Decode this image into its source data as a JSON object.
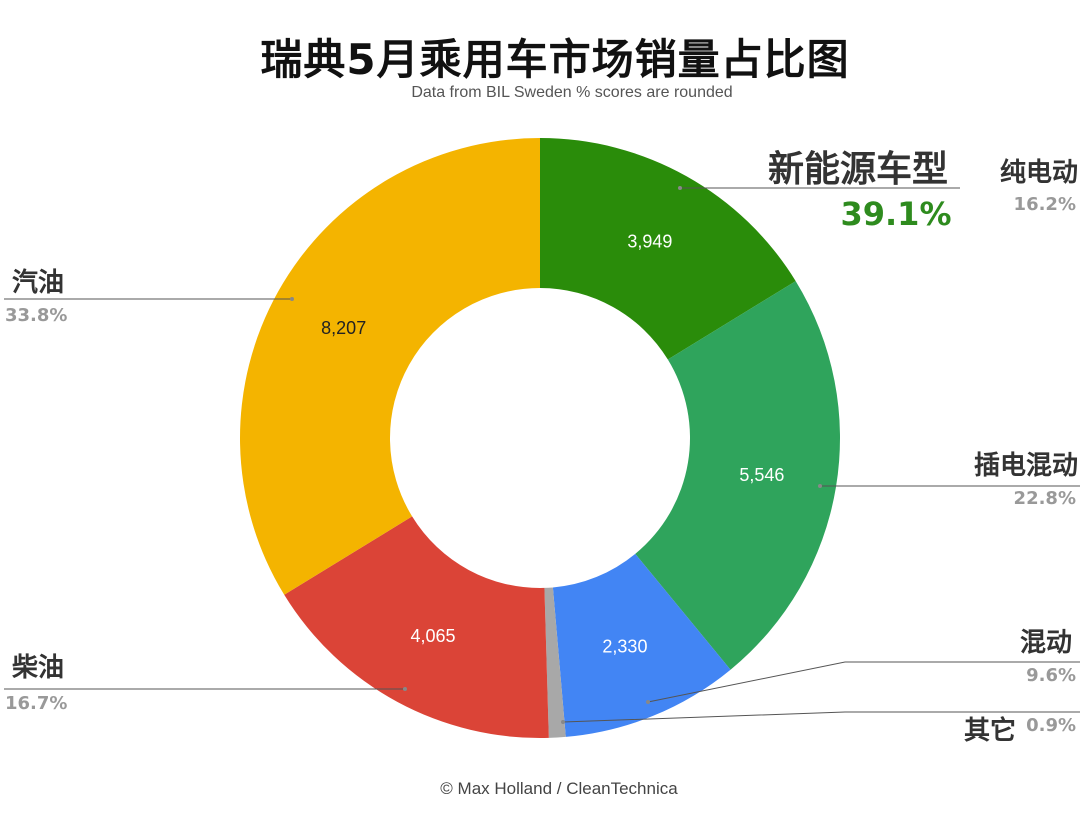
{
  "title": "瑞典5月乘用车市场销量占比图",
  "subtitle": "Data from BIL Sweden % scores are rounded",
  "credit": "© Max Holland / CleanTechnica",
  "chart_data": {
    "type": "pie",
    "donut": true,
    "slices": [
      {
        "key": "bev",
        "label": "纯电动",
        "value": 3949,
        "value_label": "3,949",
        "percent": "16.2%",
        "color": "#2a8c0a",
        "value_color": "#ffffff"
      },
      {
        "key": "phev",
        "label": "插电混动",
        "value": 5546,
        "value_label": "5,546",
        "percent": "22.8%",
        "color": "#2fa45c",
        "value_color": "#ffffff"
      },
      {
        "key": "hev",
        "label": "混动",
        "value": 2330,
        "value_label": "2,330",
        "percent": "9.6%",
        "color": "#4285f4",
        "value_color": "#ffffff"
      },
      {
        "key": "other",
        "label": "其它",
        "value": 219,
        "value_label": "",
        "percent": "0.9%",
        "color": "#a8a8a8",
        "value_color": "#ffffff"
      },
      {
        "key": "diesel",
        "label": "柴油",
        "value": 4065,
        "value_label": "4,065",
        "percent": "16.7%",
        "color": "#db4437",
        "value_color": "#ffffff"
      },
      {
        "key": "petrol",
        "label": "汽油",
        "value": 8207,
        "value_label": "8,207",
        "percent": "33.8%",
        "color": "#f4b400",
        "value_color": "#222222"
      }
    ],
    "annotation": {
      "label": "新能源车型",
      "value": "39.1%",
      "color": "#2e8b1e"
    }
  }
}
